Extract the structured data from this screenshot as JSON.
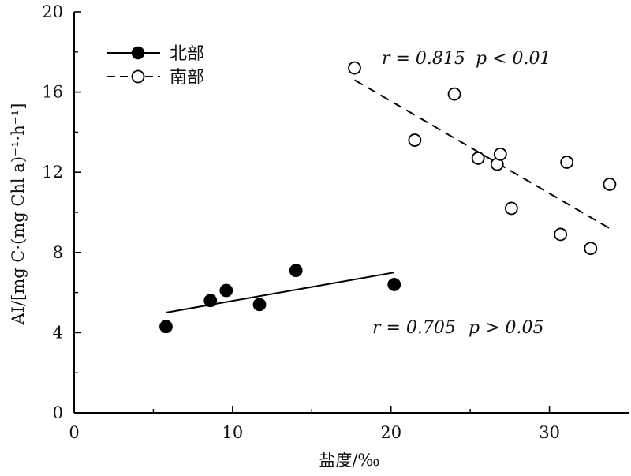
{
  "chart_data": {
    "type": "scatter",
    "xlabel": "盐度/‰",
    "ylabel": "AI/[mg C·(mg Chl a)⁻¹·h⁻¹]",
    "xlim": [
      0,
      35
    ],
    "ylim": [
      0,
      20
    ],
    "xticks": [
      0,
      10,
      20,
      30
    ],
    "yticks": [
      0,
      4,
      8,
      12,
      16,
      20
    ],
    "grid": false,
    "legend_position": "top-left",
    "series": [
      {
        "name": "北部",
        "marker": "filled-circle",
        "line_style": "solid",
        "points": [
          {
            "x": 5.8,
            "y": 4.3
          },
          {
            "x": 8.6,
            "y": 5.6
          },
          {
            "x": 9.6,
            "y": 6.1
          },
          {
            "x": 11.7,
            "y": 5.4
          },
          {
            "x": 14.0,
            "y": 7.1
          },
          {
            "x": 20.2,
            "y": 6.4
          }
        ],
        "fit_line": {
          "x": [
            5.8,
            20.2
          ],
          "y": [
            5.0,
            7.0
          ]
        },
        "annotation": {
          "r": "r = 0.705",
          "p": "p > 0.05"
        }
      },
      {
        "name": "南部",
        "marker": "open-circle",
        "line_style": "dashed",
        "points": [
          {
            "x": 17.7,
            "y": 17.2
          },
          {
            "x": 21.5,
            "y": 13.6
          },
          {
            "x": 24.0,
            "y": 15.9
          },
          {
            "x": 25.5,
            "y": 12.7
          },
          {
            "x": 26.7,
            "y": 12.4
          },
          {
            "x": 26.9,
            "y": 12.9
          },
          {
            "x": 27.6,
            "y": 10.2
          },
          {
            "x": 30.7,
            "y": 8.9
          },
          {
            "x": 31.1,
            "y": 12.5
          },
          {
            "x": 32.6,
            "y": 8.2
          },
          {
            "x": 33.8,
            "y": 11.4
          }
        ],
        "fit_line": {
          "x": [
            17.7,
            33.8
          ],
          "y": [
            16.6,
            9.2
          ]
        },
        "annotation": {
          "r": "r = 0.815",
          "p": "p < 0.01"
        }
      }
    ]
  }
}
